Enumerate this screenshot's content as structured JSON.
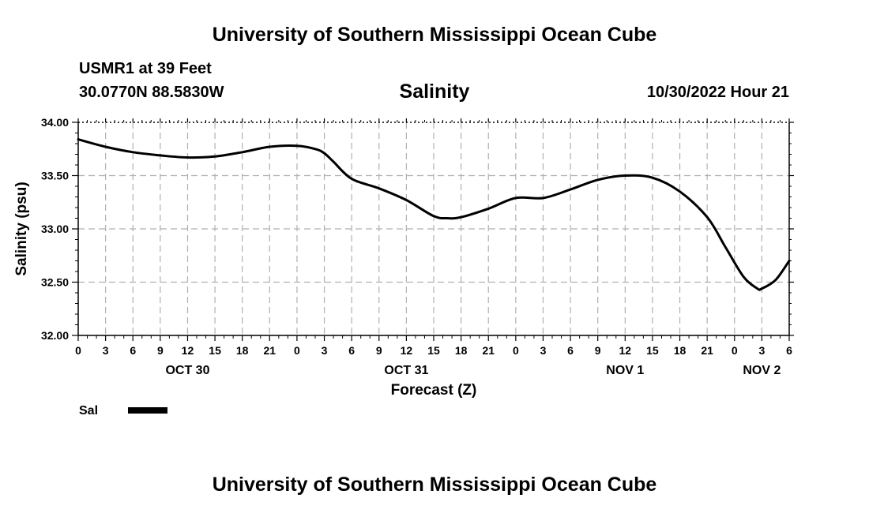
{
  "header": {
    "title": "University of Southern Mississippi Ocean Cube",
    "station": "USMR1 at 39 Feet",
    "coords": "30.0770N  88.5830W",
    "variable": "Salinity",
    "timestamp": "10/30/2022 Hour 21"
  },
  "legend": {
    "label": "Sal"
  },
  "footer": {
    "title": "University of Southern Mississippi Ocean Cube"
  },
  "chart_data": {
    "type": "line",
    "title": "Salinity",
    "xlabel": "Forecast (Z)",
    "ylabel": "Salinity (psu)",
    "ylim": [
      32.0,
      34.0
    ],
    "xlim": [
      0,
      78
    ],
    "grid": true,
    "y_ticks": [
      "32.00",
      "32.50",
      "33.00",
      "33.50",
      "34.00"
    ],
    "x_tick_labels": [
      "0",
      "3",
      "6",
      "9",
      "12",
      "15",
      "18",
      "21",
      "0",
      "3",
      "6",
      "9",
      "12",
      "15",
      "18",
      "21",
      "0",
      "3",
      "6",
      "9",
      "12",
      "15",
      "18",
      "21",
      "0",
      "3",
      "6"
    ],
    "date_labels": [
      {
        "label": "OCT 30",
        "hour": 12
      },
      {
        "label": "OCT 31",
        "hour": 36
      },
      {
        "label": "NOV 1",
        "hour": 60
      },
      {
        "label": "NOV 2",
        "hour": 75
      }
    ],
    "series": [
      {
        "name": "Sal",
        "color": "#000000",
        "x": [
          0,
          3,
          6,
          9,
          12,
          15,
          18,
          21,
          24,
          26,
          27,
          28,
          30,
          33,
          36,
          39,
          40.5,
          42,
          45,
          48,
          51,
          54,
          57,
          60,
          63,
          66,
          69,
          71,
          73,
          74.5,
          75,
          76.5,
          78
        ],
        "values": [
          33.84,
          33.77,
          33.72,
          33.69,
          33.67,
          33.68,
          33.72,
          33.77,
          33.78,
          33.75,
          33.71,
          33.63,
          33.47,
          33.38,
          33.27,
          33.12,
          33.1,
          33.11,
          33.19,
          33.29,
          33.29,
          33.37,
          33.46,
          33.5,
          33.48,
          33.35,
          33.11,
          32.83,
          32.55,
          32.44,
          32.44,
          32.52,
          32.7
        ]
      }
    ]
  }
}
